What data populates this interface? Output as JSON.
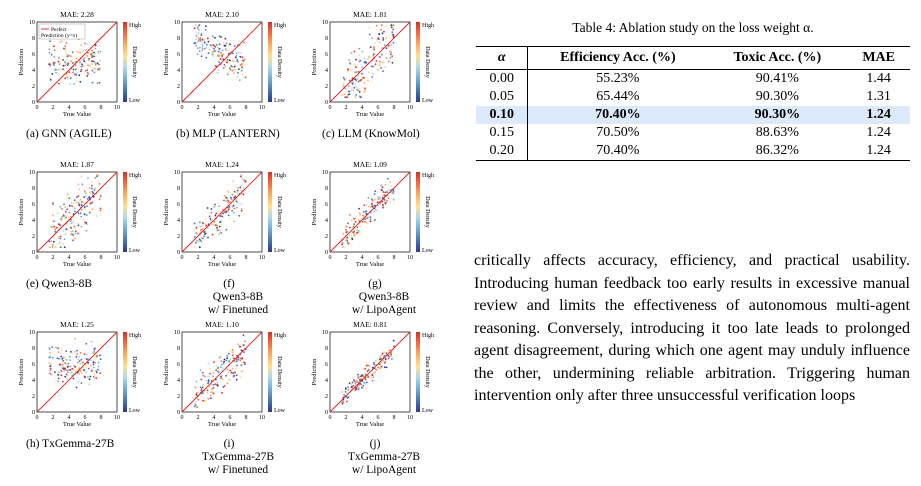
{
  "figure": {
    "legend": {
      "perfect": "Perfect",
      "prediction": "Prediction (y=x)"
    },
    "colorbar": {
      "high": "High",
      "low": "Low",
      "title": "Data Density"
    },
    "axes": {
      "xlabel": "True Value",
      "ylabel": "Prediction",
      "ticks": [
        "0",
        "2",
        "4",
        "6",
        "8",
        "10"
      ]
    },
    "panels": [
      {
        "id": "a",
        "mae": "MAE: 2.28",
        "label": "(a)",
        "caption": [
          "GNN (AGILE)"
        ],
        "mode": "flat"
      },
      {
        "id": "b",
        "mae": "MAE: 2.10",
        "label": "(b)",
        "caption": [
          "MLP (LANTERN)"
        ],
        "mode": "neg"
      },
      {
        "id": "c",
        "mae": "MAE: 1.81",
        "label": "(c)",
        "caption": [
          "LLM (KnowMol)"
        ],
        "mode": "wide"
      },
      {
        "id": "e",
        "mae": "MAE: 1.87",
        "label": "(e)",
        "caption": [
          "Qwen3-8B"
        ],
        "mode": "wide"
      },
      {
        "id": "f",
        "mae": "MAE: 1.24",
        "label": "(f)",
        "caption": [
          "Qwen3-8B",
          "w/ Finetuned"
        ],
        "mode": "mid"
      },
      {
        "id": "g",
        "mae": "MAE: 1.09",
        "label": "(g)",
        "caption": [
          "Qwen3-8B",
          "w/ LipoAgent"
        ],
        "mode": "tight"
      },
      {
        "id": "h",
        "mae": "MAE: 1.25",
        "label": "(h)",
        "caption": [
          "TxGemma-27B"
        ],
        "mode": "flathi"
      },
      {
        "id": "i",
        "mae": "MAE: 1.10",
        "label": "(i)",
        "caption": [
          "TxGemma-27B",
          "w/ Finetuned"
        ],
        "mode": "mid"
      },
      {
        "id": "j",
        "mae": "MAE: 0.81",
        "label": "(j)",
        "caption": [
          "TxGemma-27B",
          "w/ LipoAgent"
        ],
        "mode": "tighter"
      }
    ]
  },
  "table": {
    "caption": "Table 4: Ablation study on the loss weight α.",
    "headers": [
      "α",
      "Efficiency Acc. (%)",
      "Toxic Acc. (%)",
      "MAE"
    ],
    "rows": [
      [
        "0.00",
        "55.23%",
        "90.41%",
        "1.44"
      ],
      [
        "0.05",
        "65.44%",
        "90.30%",
        "1.31"
      ],
      [
        "0.10",
        "70.40%",
        "90.30%",
        "1.24"
      ],
      [
        "0.15",
        "70.50%",
        "88.63%",
        "1.24"
      ],
      [
        "0.20",
        "70.40%",
        "86.32%",
        "1.24"
      ]
    ],
    "highlight_row": 2,
    "highlight_color": "#dce9fa"
  },
  "body_text": "critically affects accuracy, efficiency, and practical usability. Introducing human feedback too early results in excessive manual review and limits the effectiveness of autonomous multi-agent reason­ing. Conversely, introducing it too late leads to prolonged agent disagreement, during which one agent may unduly influence the other, undermining reliable arbitration. Triggering human interven­tion only after three unsuccessful verification loops"
}
